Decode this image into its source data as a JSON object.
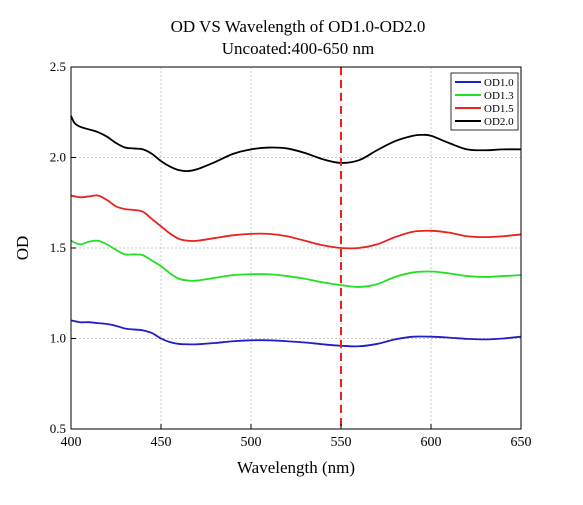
{
  "chart_data": {
    "type": "line",
    "title": "OD VS Wavelength of OD1.0-OD2.0",
    "subtitle": "Uncoated:400-650 nm",
    "xlabel": "Wavelength (nm)",
    "ylabel": "OD",
    "xlim": [
      400,
      650
    ],
    "ylim": [
      0.5,
      2.5
    ],
    "xticks": [
      400,
      450,
      500,
      550,
      600,
      650
    ],
    "yticks": [
      0.5,
      1.0,
      1.5,
      2.0,
      2.5
    ],
    "xtick_labels": [
      "400",
      "450",
      "500",
      "550",
      "600",
      "650"
    ],
    "ytick_labels": [
      "0.5",
      "1.0",
      "1.5",
      "2.0",
      "2.5"
    ],
    "grid": true,
    "legend_position": "top-right",
    "reference_line": {
      "x": 550,
      "color": "#e8221c",
      "style": "dashed"
    },
    "series": [
      {
        "name": "OD1.0",
        "color": "#1f1fc8",
        "x": [
          400,
          405,
          410,
          415,
          420,
          425,
          430,
          435,
          440,
          445,
          450,
          455,
          460,
          465,
          470,
          480,
          490,
          500,
          510,
          520,
          530,
          540,
          550,
          560,
          570,
          580,
          590,
          600,
          610,
          620,
          630,
          640,
          650
        ],
        "y": [
          1.1,
          1.09,
          1.09,
          1.085,
          1.08,
          1.07,
          1.055,
          1.05,
          1.045,
          1.03,
          1.0,
          0.98,
          0.97,
          0.968,
          0.968,
          0.975,
          0.985,
          0.99,
          0.99,
          0.985,
          0.978,
          0.968,
          0.96,
          0.957,
          0.97,
          0.995,
          1.01,
          1.01,
          1.005,
          0.998,
          0.995,
          1.0,
          1.01
        ]
      },
      {
        "name": "OD1.3",
        "color": "#22e022",
        "x": [
          400,
          405,
          410,
          415,
          420,
          425,
          430,
          435,
          440,
          445,
          450,
          455,
          460,
          465,
          470,
          480,
          490,
          500,
          510,
          520,
          530,
          540,
          550,
          560,
          570,
          580,
          590,
          600,
          610,
          620,
          630,
          640,
          650
        ],
        "y": [
          1.54,
          1.52,
          1.535,
          1.54,
          1.52,
          1.49,
          1.465,
          1.465,
          1.46,
          1.43,
          1.4,
          1.36,
          1.33,
          1.32,
          1.32,
          1.335,
          1.35,
          1.355,
          1.355,
          1.345,
          1.33,
          1.31,
          1.295,
          1.285,
          1.3,
          1.34,
          1.365,
          1.37,
          1.36,
          1.345,
          1.34,
          1.345,
          1.35
        ]
      },
      {
        "name": "OD1.5",
        "color": "#e8221c",
        "x": [
          400,
          405,
          410,
          415,
          420,
          425,
          430,
          435,
          440,
          445,
          450,
          455,
          460,
          465,
          470,
          480,
          490,
          500,
          510,
          520,
          530,
          540,
          550,
          560,
          570,
          580,
          590,
          600,
          610,
          620,
          630,
          640,
          650
        ],
        "y": [
          1.79,
          1.78,
          1.785,
          1.79,
          1.765,
          1.73,
          1.715,
          1.71,
          1.7,
          1.66,
          1.62,
          1.58,
          1.55,
          1.54,
          1.54,
          1.555,
          1.57,
          1.578,
          1.578,
          1.565,
          1.54,
          1.515,
          1.5,
          1.5,
          1.52,
          1.56,
          1.59,
          1.595,
          1.585,
          1.565,
          1.56,
          1.565,
          1.575
        ]
      },
      {
        "name": "OD2.0",
        "color": "#000000",
        "x": [
          400,
          402,
          405,
          410,
          415,
          420,
          425,
          430,
          435,
          440,
          445,
          450,
          455,
          460,
          465,
          470,
          480,
          490,
          500,
          510,
          520,
          530,
          540,
          550,
          560,
          570,
          580,
          590,
          595,
          600,
          610,
          620,
          630,
          640,
          650
        ],
        "y": [
          2.23,
          2.19,
          2.17,
          2.155,
          2.14,
          2.115,
          2.08,
          2.055,
          2.05,
          2.045,
          2.02,
          1.98,
          1.95,
          1.93,
          1.925,
          1.935,
          1.975,
          2.02,
          2.045,
          2.055,
          2.05,
          2.025,
          1.99,
          1.97,
          1.985,
          2.04,
          2.09,
          2.12,
          2.125,
          2.12,
          2.08,
          2.045,
          2.04,
          2.045,
          2.045
        ]
      }
    ]
  }
}
